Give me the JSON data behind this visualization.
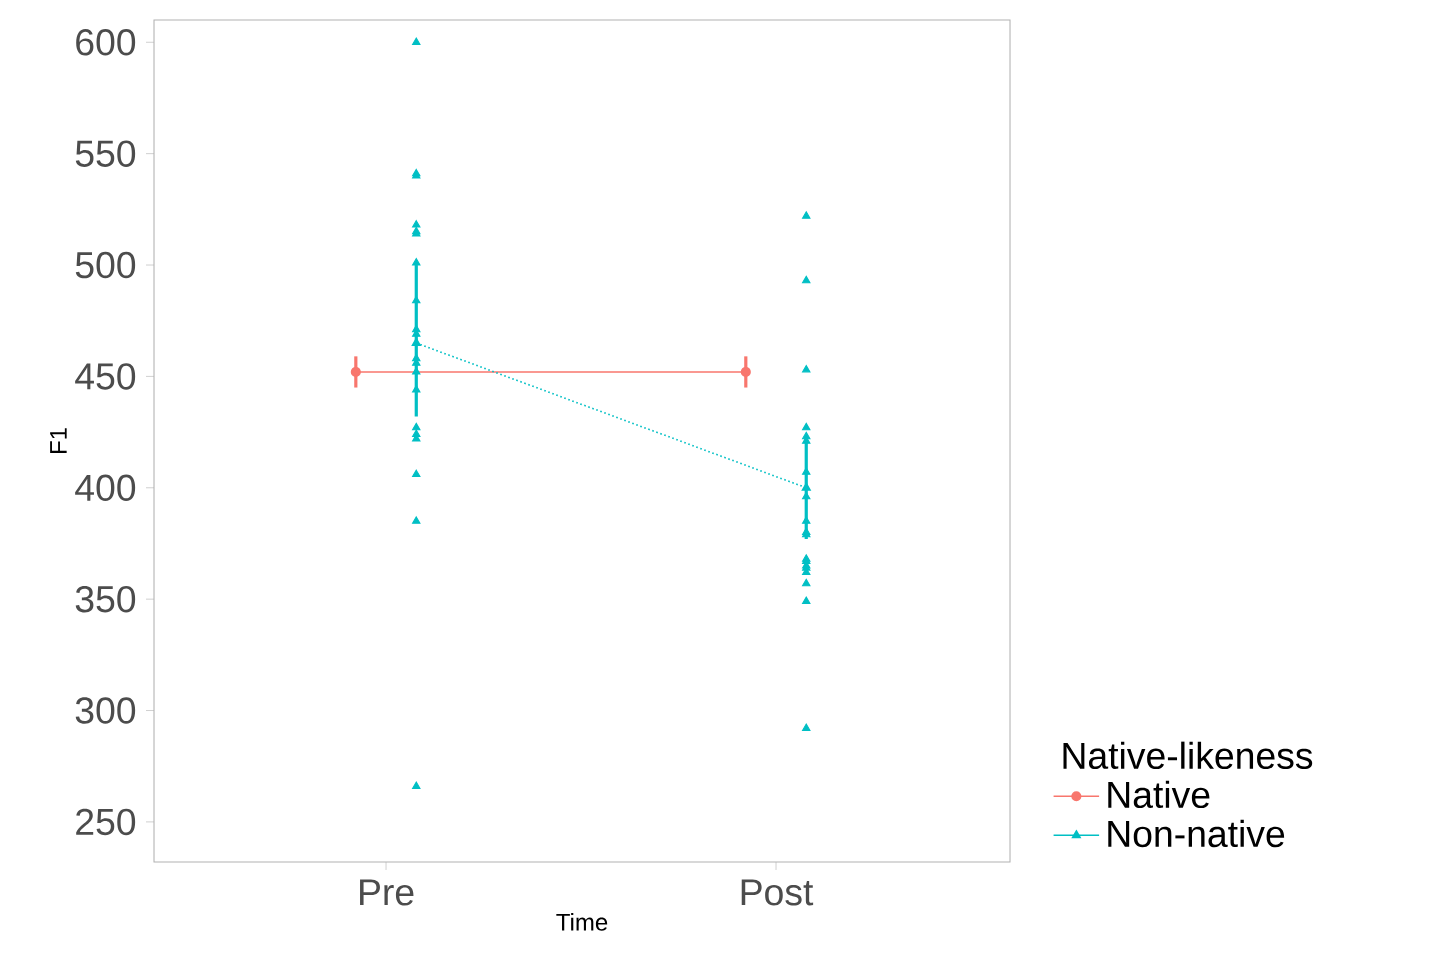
{
  "chart_data": {
    "type": "line",
    "xlabel": "Time",
    "ylabel": "F1",
    "legend_title": "Native-likeness",
    "categories": [
      "Pre",
      "Post"
    ],
    "ylim": [
      232,
      610
    ],
    "yticks": [
      250,
      300,
      350,
      400,
      450,
      500,
      550,
      600
    ],
    "grid": false,
    "legend": "right",
    "series": [
      {
        "name": "Native",
        "color": "#f8766d",
        "marker": "circle",
        "line_style": "solid",
        "values": [
          452,
          452
        ],
        "errors": [
          7,
          7
        ]
      },
      {
        "name": "Non-native",
        "color": "#00bfc4",
        "marker": "triangle",
        "line_style": "dotted",
        "values": [
          465,
          400
        ],
        "errors": [
          [
            432,
            500
          ],
          [
            377,
            423
          ]
        ]
      },
      {
        "type": "scatter",
        "color": "#00bfc4",
        "marker": "triangle",
        "x": [
          "Pre",
          "Pre",
          "Pre",
          "Pre",
          "Pre",
          "Pre",
          "Pre",
          "Pre",
          "Pre",
          "Pre",
          "Pre",
          "Pre",
          "Pre",
          "Pre",
          "Pre",
          "Pre",
          "Pre",
          "Pre",
          "Pre",
          "Pre",
          "Post",
          "Post",
          "Post",
          "Post",
          "Post",
          "Post",
          "Post",
          "Post",
          "Post",
          "Post",
          "Post",
          "Post",
          "Post",
          "Post",
          "Post",
          "Post",
          "Post",
          "Post",
          "Post"
        ],
        "values": [
          600,
          541,
          540,
          518,
          515,
          514,
          501,
          484,
          471,
          469,
          458,
          456,
          452,
          444,
          427,
          424,
          422,
          406,
          385,
          266,
          522,
          493,
          453,
          427,
          423,
          421,
          407,
          396,
          385,
          380,
          379,
          368,
          367,
          365,
          364,
          362,
          357,
          349,
          292
        ]
      }
    ]
  }
}
